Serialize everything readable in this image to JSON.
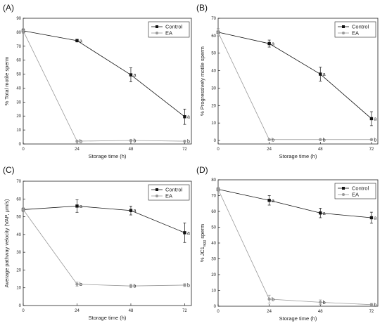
{
  "chart_data": [
    {
      "type": "line",
      "panel_label": "(A)",
      "xlabel": "Storage time (h)",
      "ylabel": "% Total motile sperm",
      "x": [
        0,
        24,
        48,
        72
      ],
      "xlim": [
        0,
        75
      ],
      "ylim": [
        0,
        90
      ],
      "xticks": [
        0,
        24,
        48,
        72
      ],
      "yticks": [
        0,
        10,
        20,
        30,
        40,
        50,
        60,
        70,
        80,
        90
      ],
      "legend_position": "top-right",
      "series": [
        {
          "name": "Control",
          "values": [
            81,
            74,
            49.5,
            19.5
          ],
          "errors": [
            1.5,
            1,
            5,
            5.5
          ],
          "labels": [
            "",
            "a",
            "a",
            "a"
          ],
          "color": "#111111",
          "marker": "square"
        },
        {
          "name": "EA",
          "values": [
            81,
            2,
            2.5,
            2
          ],
          "errors": [
            1.5,
            0.5,
            0.5,
            0.5
          ],
          "labels": [
            "",
            "b",
            "b",
            "b"
          ],
          "color": "#999999",
          "marker": "circle"
        }
      ]
    },
    {
      "type": "line",
      "panel_label": "(B)",
      "xlabel": "Storage time (h)",
      "ylabel": "% Progressively motile sperm",
      "x": [
        0,
        24,
        48,
        72
      ],
      "xlim": [
        0,
        75
      ],
      "ylim": [
        -2,
        70
      ],
      "xticks": [
        0,
        24,
        48,
        72
      ],
      "yticks": [
        0,
        10,
        20,
        30,
        40,
        50,
        60,
        70
      ],
      "legend_position": "top-right",
      "series": [
        {
          "name": "Control",
          "values": [
            62,
            55.5,
            38,
            12.5
          ],
          "errors": [
            2,
            2,
            4,
            4
          ],
          "labels": [
            "",
            "a",
            "a",
            "a"
          ],
          "color": "#111111",
          "marker": "square"
        },
        {
          "name": "EA",
          "values": [
            62,
            0.5,
            0.5,
            0.5
          ],
          "errors": [
            2,
            0.3,
            0.3,
            0.3
          ],
          "labels": [
            "",
            "b",
            "b",
            "b"
          ],
          "color": "#999999",
          "marker": "circle"
        }
      ]
    },
    {
      "type": "line",
      "panel_label": "(C)",
      "xlabel": "Storage time (h)",
      "ylabel": "Average pathway velocity (VAP, μm/s)",
      "x": [
        0,
        24,
        48,
        72
      ],
      "xlim": [
        0,
        75
      ],
      "ylim": [
        0,
        70
      ],
      "xticks": [
        0,
        24,
        48,
        72
      ],
      "yticks": [
        0,
        10,
        20,
        30,
        40,
        50,
        60,
        70
      ],
      "legend_position": "top-right",
      "series": [
        {
          "name": "Control",
          "values": [
            54,
            56,
            53.5,
            41
          ],
          "errors": [
            1,
            3.5,
            2.5,
            5.5
          ],
          "labels": [
            "",
            "a",
            "a",
            "a"
          ],
          "color": "#111111",
          "marker": "square"
        },
        {
          "name": "EA",
          "values": [
            54,
            12,
            11,
            11.5
          ],
          "errors": [
            1,
            1.2,
            1,
            0.8
          ],
          "labels": [
            "",
            "b",
            "b",
            "b"
          ],
          "color": "#999999",
          "marker": "circle"
        }
      ]
    },
    {
      "type": "line",
      "panel_label": "(D)",
      "xlabel": "Storage time (h)",
      "ylabel": "% JC1",
      "ylabel_subscript": "agg",
      "ylabel_suffix": " sperm",
      "x": [
        0,
        24,
        48,
        72
      ],
      "xlim": [
        0,
        75
      ],
      "ylim": [
        0,
        80
      ],
      "xticks": [
        0,
        24,
        48,
        72
      ],
      "yticks": [
        0,
        10,
        20,
        30,
        40,
        50,
        60,
        70,
        80
      ],
      "legend_position": "top-right",
      "series": [
        {
          "name": "Control",
          "values": [
            74,
            67,
            59,
            56
          ],
          "errors": [
            1,
            3,
            3,
            3.5
          ],
          "labels": [
            "",
            "a",
            "a",
            "a"
          ],
          "color": "#111111",
          "marker": "square"
        },
        {
          "name": "EA",
          "values": [
            74,
            4.5,
            2.5,
            1
          ],
          "errors": [
            1,
            2.5,
            1.5,
            0.8
          ],
          "labels": [
            "",
            "b",
            "b",
            "b"
          ],
          "color": "#999999",
          "marker": "circle"
        }
      ]
    }
  ]
}
